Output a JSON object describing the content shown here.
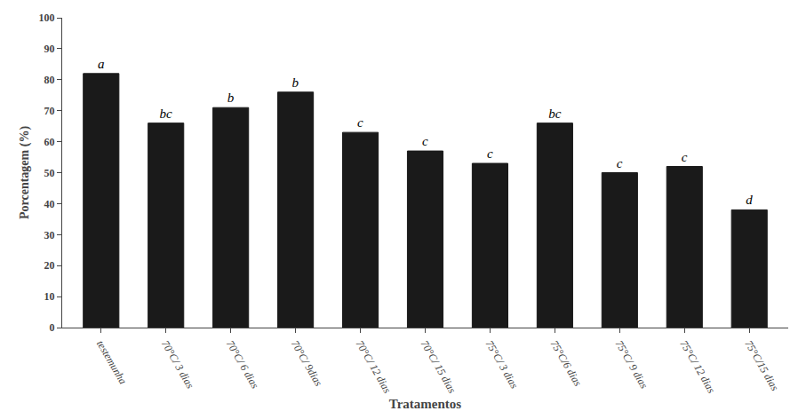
{
  "chart_data": {
    "type": "bar",
    "xlabel": "Tratamentos",
    "ylabel": "Porcentagem (%)",
    "categories": [
      "testemunha",
      "70°C/ 3 dias",
      "70°C/ 6 dias",
      "70°C/ 9dias",
      "70°C/ 12 dias",
      "70°C/ 15 dias",
      "75°C/ 3 dias",
      "75°C/6 dias",
      "75°C/ 9 dias",
      "75°C/ 12 dias",
      "75°C/15 dias"
    ],
    "values": [
      82,
      66,
      71,
      76,
      63,
      57,
      53,
      66,
      50,
      52,
      38
    ],
    "annotations": [
      "a",
      "bc",
      "b",
      "b",
      "c",
      "c",
      "c",
      "bc",
      "c",
      "c",
      "d"
    ],
    "color": "#1a1a1a",
    "ylim": [
      0,
      100
    ],
    "yticks": [
      0,
      10,
      20,
      30,
      40,
      50,
      60,
      70,
      80,
      90,
      100
    ],
    "grid": false
  }
}
